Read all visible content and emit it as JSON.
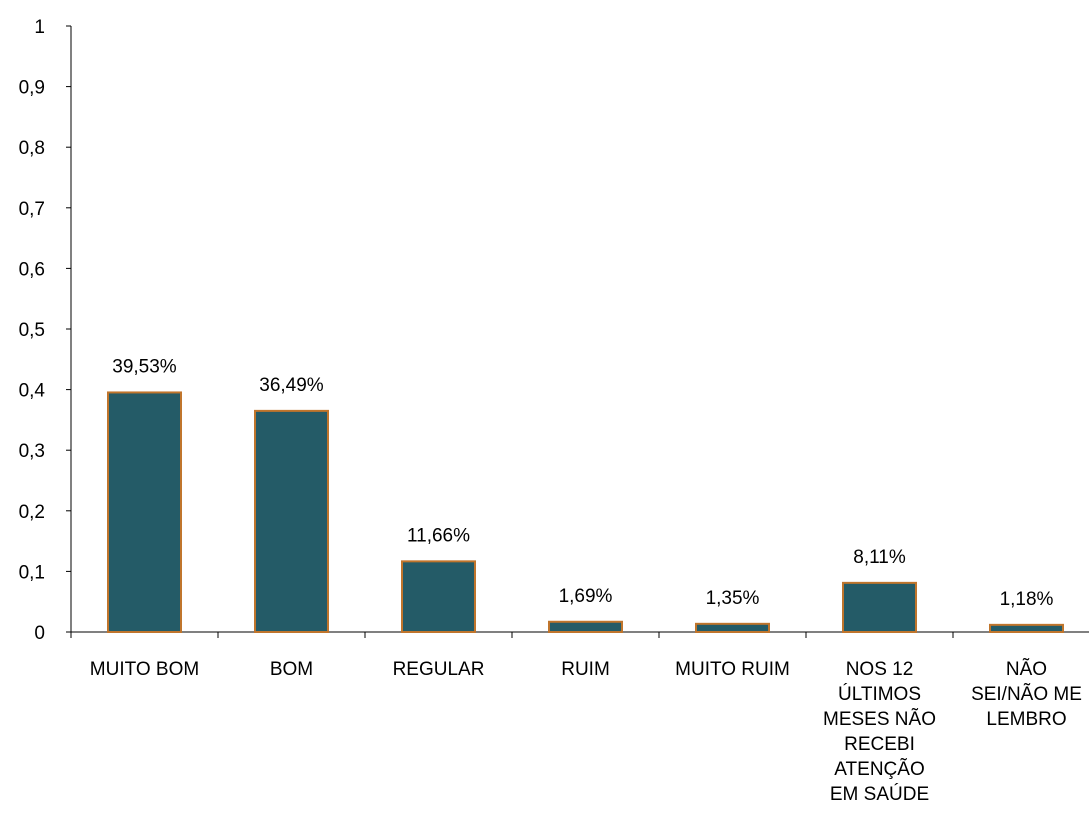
{
  "chart_data": {
    "type": "bar",
    "title": "",
    "xlabel": "",
    "ylabel": "",
    "ylim": [
      0,
      1
    ],
    "yticks": [
      0,
      0.1,
      0.2,
      0.3,
      0.4,
      0.5,
      0.6,
      0.7,
      0.8,
      0.9,
      1
    ],
    "ytick_labels": [
      "0",
      "0,1",
      "0,2",
      "0,3",
      "0,4",
      "0,5",
      "0,6",
      "0,7",
      "0,8",
      "0,9",
      "1"
    ],
    "categories": [
      "MUITO BOM",
      "BOM",
      "REGULAR",
      "RUIM",
      "MUITO RUIM",
      "NOS 12 ÚLTIMOS MESES NÃO RECEBI ATENÇÃO EM SAÚDE",
      "NÃO SEI/NÃO ME LEMBRO"
    ],
    "category_lines": [
      [
        "MUITO BOM"
      ],
      [
        "BOM"
      ],
      [
        "REGULAR"
      ],
      [
        "RUIM"
      ],
      [
        "MUITO RUIM"
      ],
      [
        "NOS 12",
        "ÚLTIMOS",
        "MESES NÃO",
        "RECEBI",
        "ATENÇÃO",
        "EM SAÚDE"
      ],
      [
        "NÃO",
        "SEI/NÃO ME",
        "LEMBRO"
      ]
    ],
    "values": [
      0.3953,
      0.3649,
      0.1166,
      0.0169,
      0.0135,
      0.0811,
      0.0118
    ],
    "data_labels": [
      "39,53%",
      "36,49%",
      "11,66%",
      "1,69%",
      "1,35%",
      "8,11%",
      "1,18%"
    ],
    "grid": false,
    "legend": "none",
    "colors": {
      "bar_fill": "#245b67",
      "bar_stroke": "#c0752c",
      "axis": "#000000"
    }
  }
}
